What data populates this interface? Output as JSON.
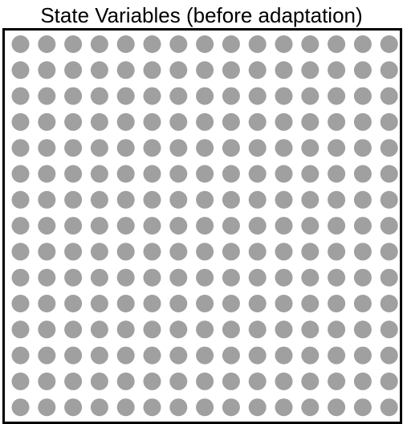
{
  "title": "State Variables (before adaptation)",
  "grid": {
    "rows": 15,
    "cols": 15,
    "dot_color": "#a0a0a0",
    "border_color": "#000000"
  }
}
